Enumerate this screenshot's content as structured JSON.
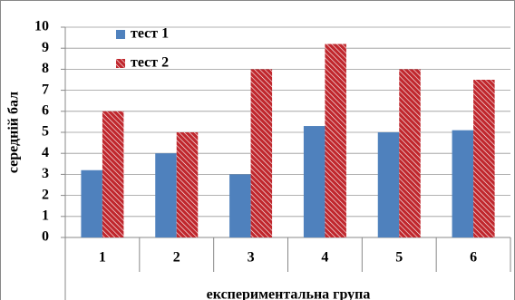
{
  "chart_data": {
    "type": "bar",
    "y_label": "середній бал",
    "x_label": "експериментальна група",
    "categories": [
      "1",
      "2",
      "3",
      "4",
      "5",
      "6"
    ],
    "series": [
      {
        "name": "тест 1",
        "color": "#4f81bd",
        "values": [
          3.2,
          4.0,
          3.0,
          5.3,
          5.0,
          5.1
        ]
      },
      {
        "name": "тест 2",
        "color": "#c0272d",
        "pattern": "hatch",
        "values": [
          6.0,
          5.0,
          8.0,
          9.2,
          8.0,
          7.5
        ]
      }
    ],
    "ylim": [
      0,
      10
    ],
    "yticks": [
      0,
      1,
      2,
      3,
      4,
      5,
      6,
      7,
      8,
      9,
      10
    ],
    "grid": true,
    "legend": "top-left"
  }
}
